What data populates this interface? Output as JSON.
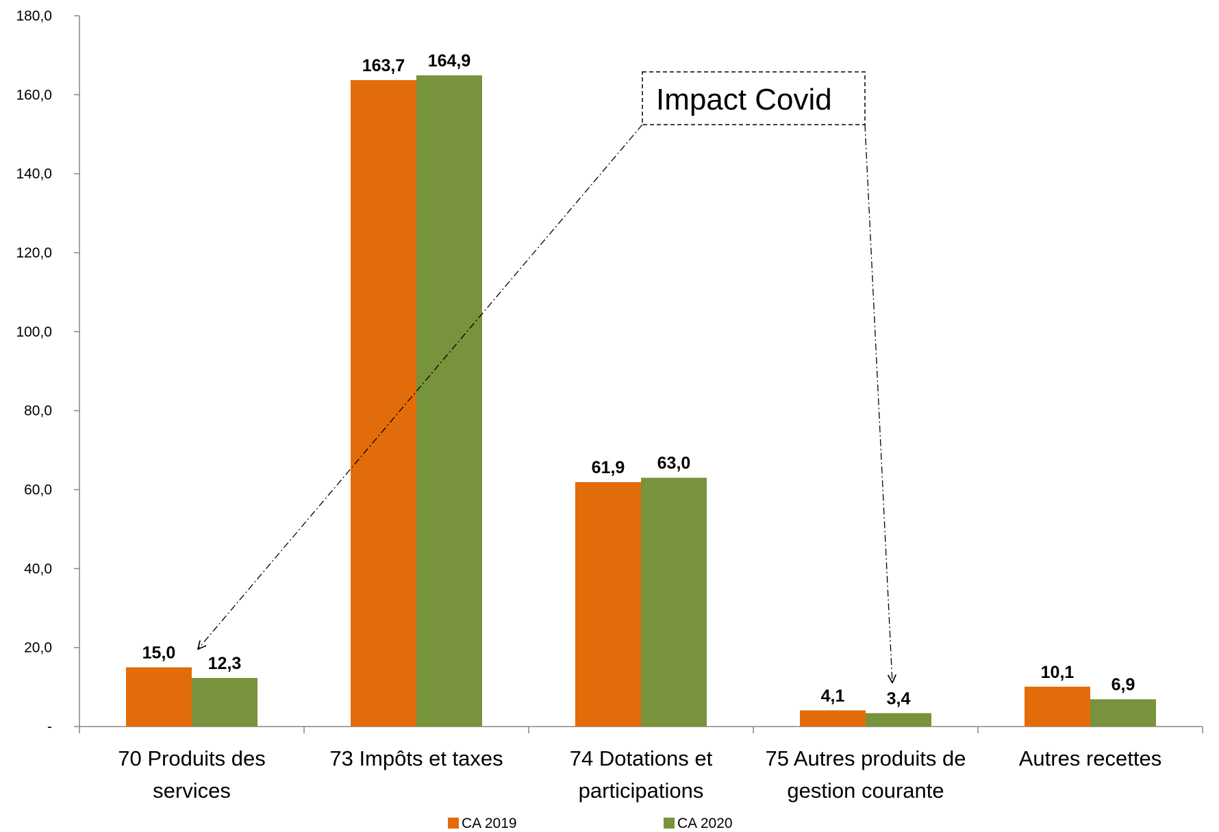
{
  "chart_data": {
    "type": "bar",
    "categories": [
      [
        "70 Produits des",
        "services"
      ],
      [
        "73 Impôts et taxes"
      ],
      [
        "74 Dotations et",
        "participations"
      ],
      [
        "75 Autres produits de",
        "gestion courante"
      ],
      [
        "Autres recettes"
      ]
    ],
    "series": [
      {
        "name": "CA 2019",
        "color": "#E36C0A",
        "values": [
          15.0,
          163.7,
          61.9,
          4.1,
          10.1
        ],
        "labels": [
          "15,0",
          "163,7",
          "61,9",
          "4,1",
          "10,1"
        ]
      },
      {
        "name": "CA 2020",
        "color": "#77933C",
        "values": [
          12.3,
          164.9,
          63.0,
          3.4,
          6.9
        ],
        "labels": [
          "12,3",
          "164,9",
          "63,0",
          "3,4",
          "6,9"
        ]
      }
    ],
    "ylim": [
      0,
      180
    ],
    "yticks": [
      0,
      20,
      40,
      60,
      80,
      100,
      120,
      140,
      160,
      180
    ],
    "ytick_labels": [
      "-",
      "20,0",
      "40,0",
      "60,0",
      "80,0",
      "100,0",
      "120,0",
      "140,0",
      "160,0",
      "180,0"
    ],
    "grid": false,
    "legend_position": "bottom",
    "annotation": {
      "text": "Impact Covid",
      "arrow_targets": [
        "70 Produits des services",
        "75 Autres produits de gestion courante"
      ]
    }
  }
}
